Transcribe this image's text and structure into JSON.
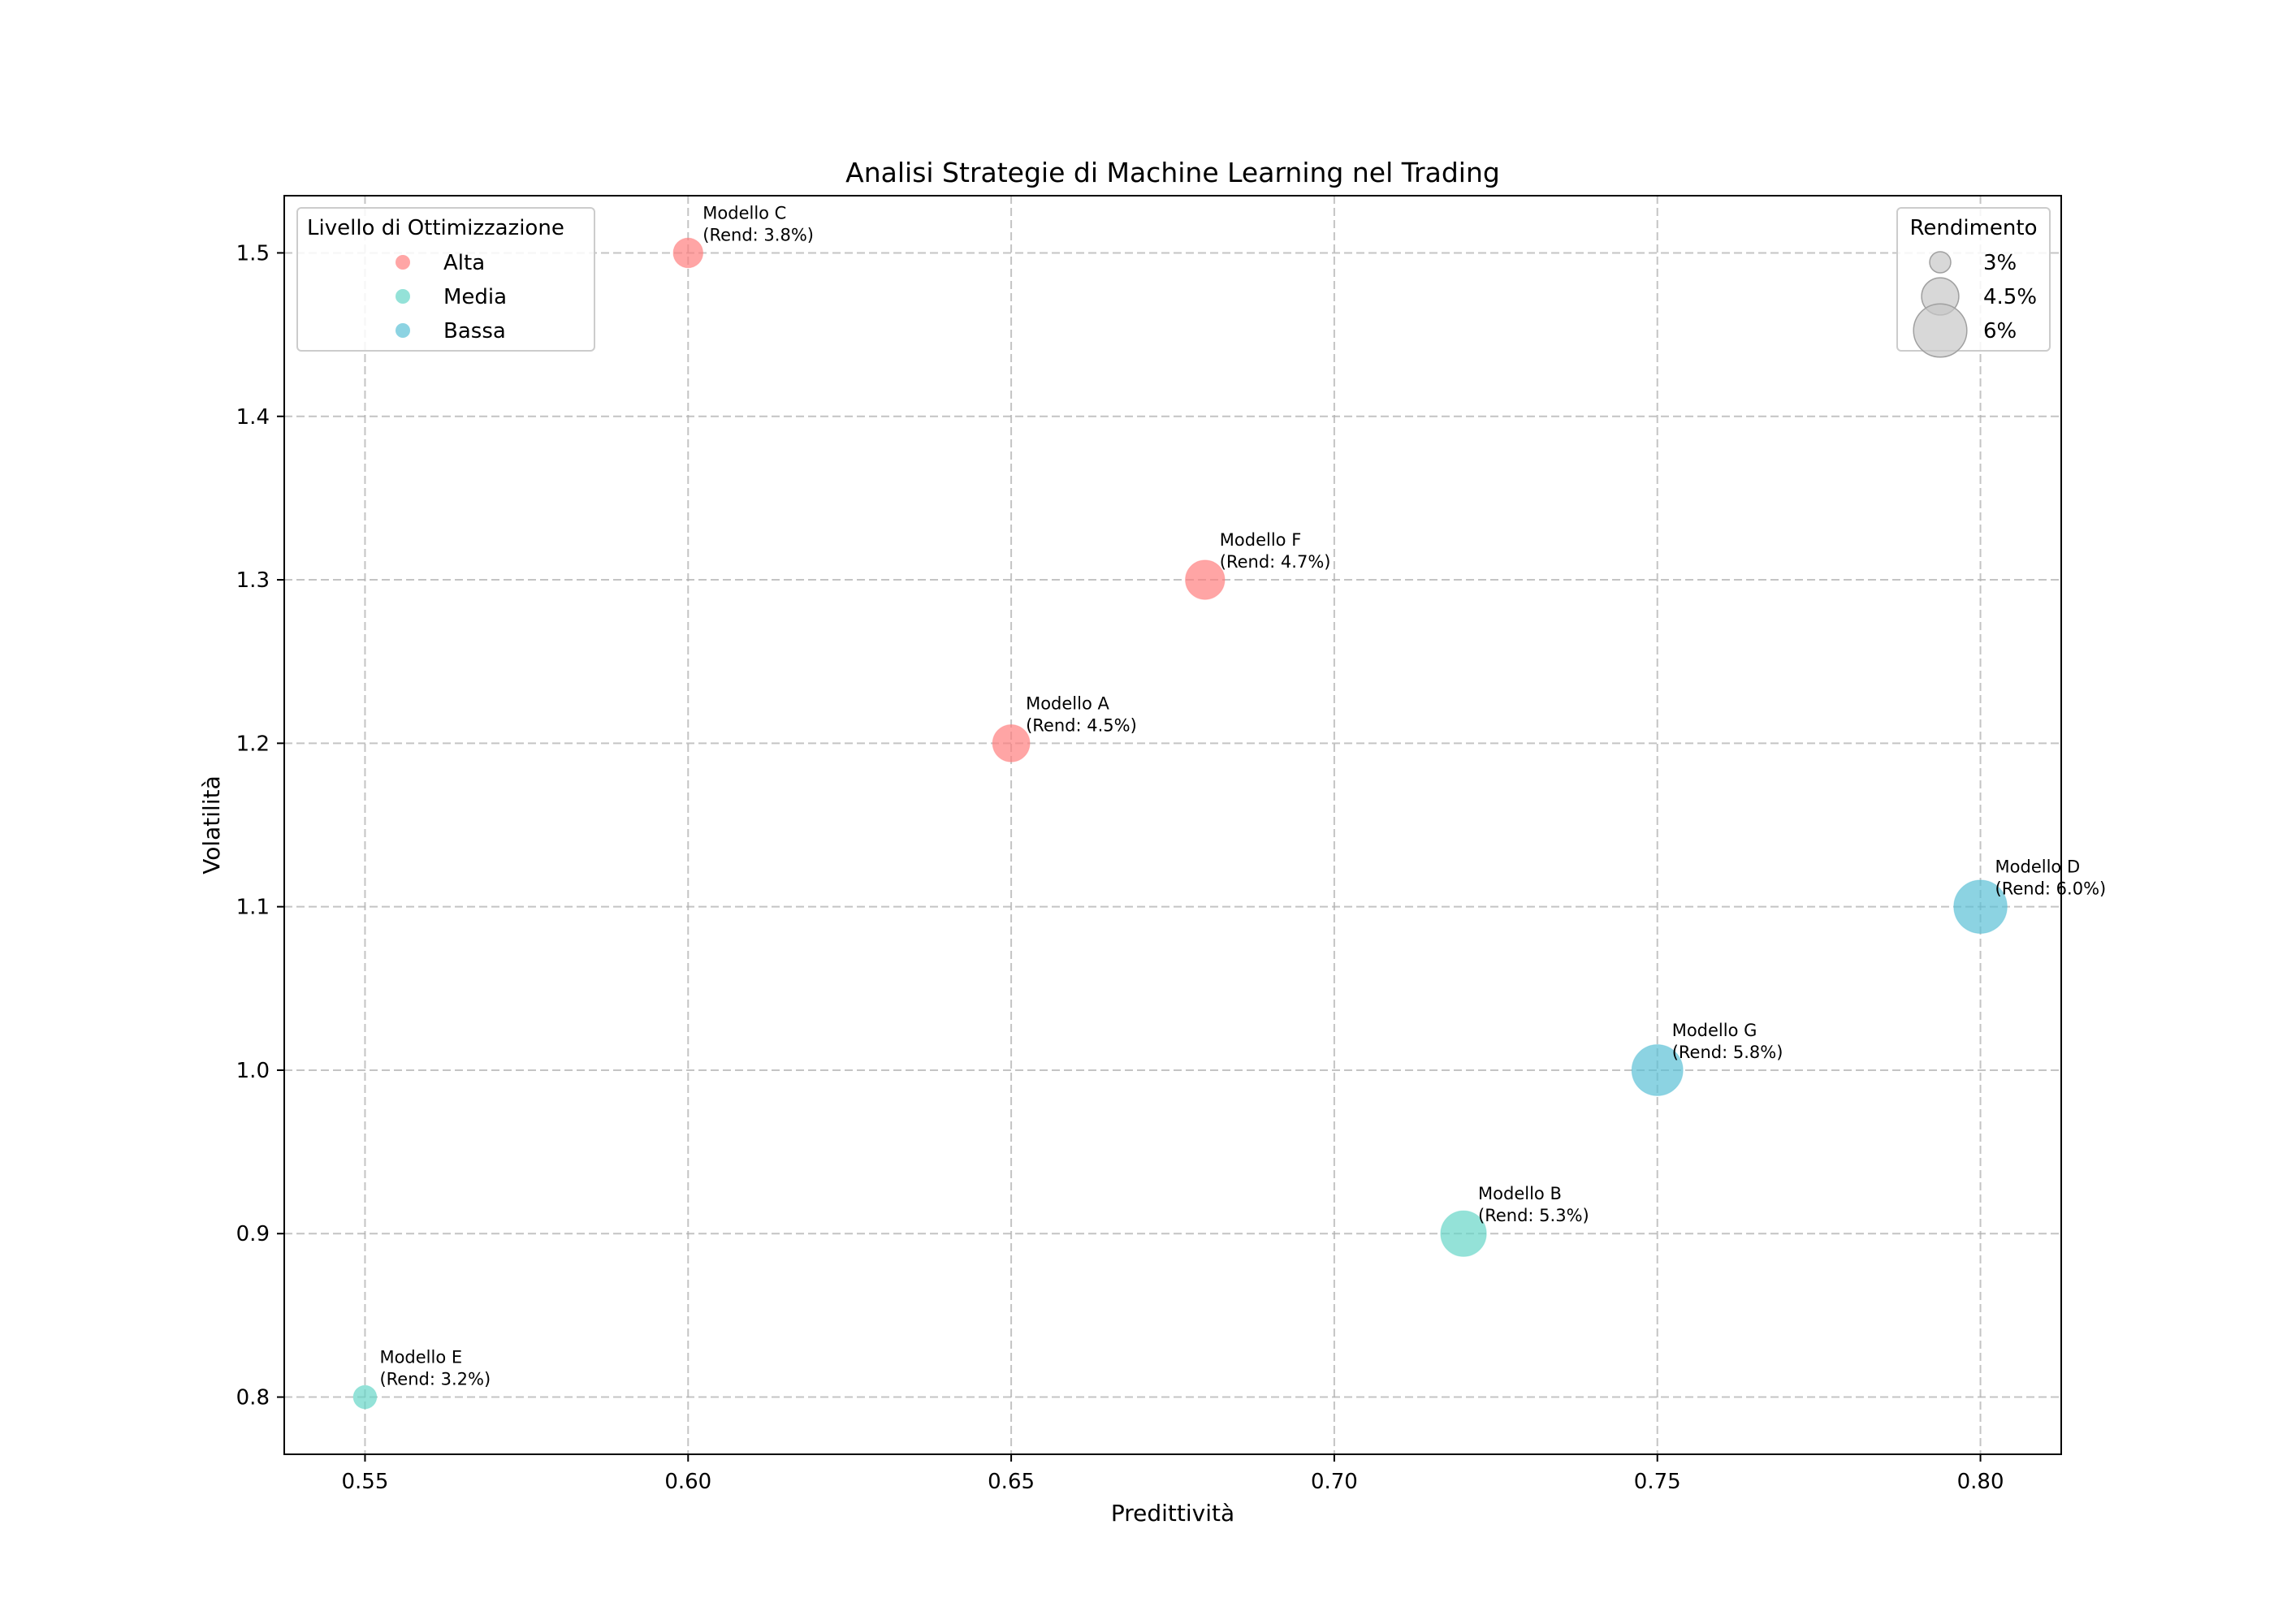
{
  "chart_data": {
    "type": "scatter",
    "title": "Analisi Strategie di Machine Learning nel Trading",
    "xlabel": "Predittività",
    "ylabel": "Volatilità",
    "xlim": [
      0.5375,
      0.8125
    ],
    "ylim": [
      0.765,
      1.535
    ],
    "xticks": [
      0.55,
      0.6,
      0.65,
      0.7,
      0.75,
      0.8
    ],
    "xtick_labels": [
      "0.55",
      "0.60",
      "0.65",
      "0.70",
      "0.75",
      "0.80"
    ],
    "yticks": [
      0.8,
      0.9,
      1.0,
      1.1,
      1.2,
      1.3,
      1.4,
      1.5
    ],
    "ytick_labels": [
      "0.8",
      "0.9",
      "1.0",
      "1.1",
      "1.2",
      "1.3",
      "1.4",
      "1.5"
    ],
    "grid": true,
    "points": [
      {
        "name": "Modello A",
        "x": 0.65,
        "y": 1.2,
        "rendimento": 4.5,
        "group": "Alta",
        "label_line1": "Modello A",
        "label_line2": "(Rend: 4.5%)"
      },
      {
        "name": "Modello B",
        "x": 0.72,
        "y": 0.9,
        "rendimento": 5.3,
        "group": "Media",
        "label_line1": "Modello B",
        "label_line2": "(Rend: 5.3%)"
      },
      {
        "name": "Modello C",
        "x": 0.6,
        "y": 1.5,
        "rendimento": 3.8,
        "group": "Alta",
        "label_line1": "Modello C",
        "label_line2": "(Rend: 3.8%)"
      },
      {
        "name": "Modello D",
        "x": 0.8,
        "y": 1.1,
        "rendimento": 6.0,
        "group": "Bassa",
        "label_line1": "Modello D",
        "label_line2": "(Rend: 6.0%)"
      },
      {
        "name": "Modello E",
        "x": 0.55,
        "y": 0.8,
        "rendimento": 3.2,
        "group": "Media",
        "label_line1": "Modello E",
        "label_line2": "(Rend: 3.2%)"
      },
      {
        "name": "Modello F",
        "x": 0.68,
        "y": 1.3,
        "rendimento": 4.7,
        "group": "Alta",
        "label_line1": "Modello F",
        "label_line2": "(Rend: 4.7%)"
      },
      {
        "name": "Modello G",
        "x": 0.75,
        "y": 1.0,
        "rendimento": 5.8,
        "group": "Bassa",
        "label_line1": "Modello G",
        "label_line2": "(Rend: 5.8%)"
      }
    ],
    "color_legend": {
      "title": "Livello di Ottimizzazione",
      "placement": "top-left",
      "entries": [
        {
          "label": "Alta",
          "color": "#ff7f7f"
        },
        {
          "label": "Media",
          "color": "#66d6c8"
        },
        {
          "label": "Bassa",
          "color": "#5bc0d6"
        }
      ]
    },
    "size_legend": {
      "title": "Rendimento",
      "placement": "top-right",
      "entries": [
        {
          "label": "3%",
          "value": 3
        },
        {
          "label": "4.5%",
          "value": 4.5
        },
        {
          "label": "6%",
          "value": 6
        }
      ],
      "color": "#c8c8c8"
    }
  }
}
